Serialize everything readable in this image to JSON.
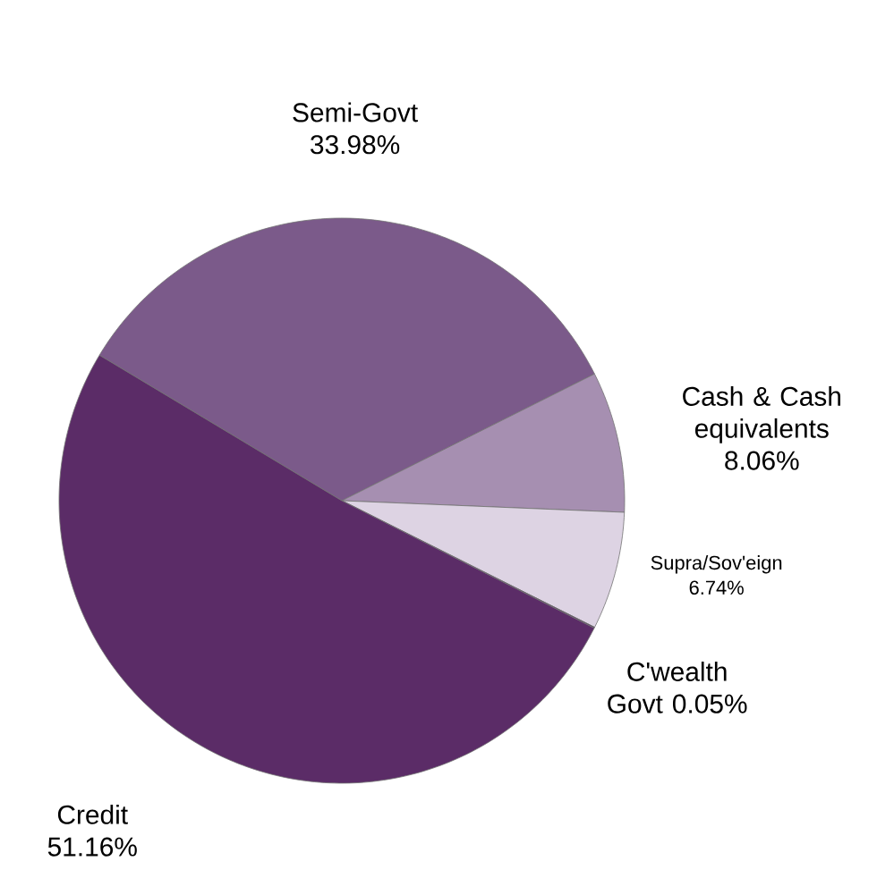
{
  "chart_data": {
    "type": "pie",
    "categories": [
      "Semi-Govt",
      "Cash & Cash equivalents",
      "Supra/Sov'eign",
      "C'wealth Govt",
      "Credit"
    ],
    "values": [
      33.98,
      8.06,
      6.74,
      0.05,
      51.16
    ],
    "value_labels": [
      "33.98%",
      "8.06%",
      "6.74%",
      "0.05%",
      "51.16%"
    ],
    "colors": [
      "#7b5a8a",
      "#a68fb1",
      "#ddd3e3",
      "#3f1d4a",
      "#5b2c67"
    ]
  }
}
